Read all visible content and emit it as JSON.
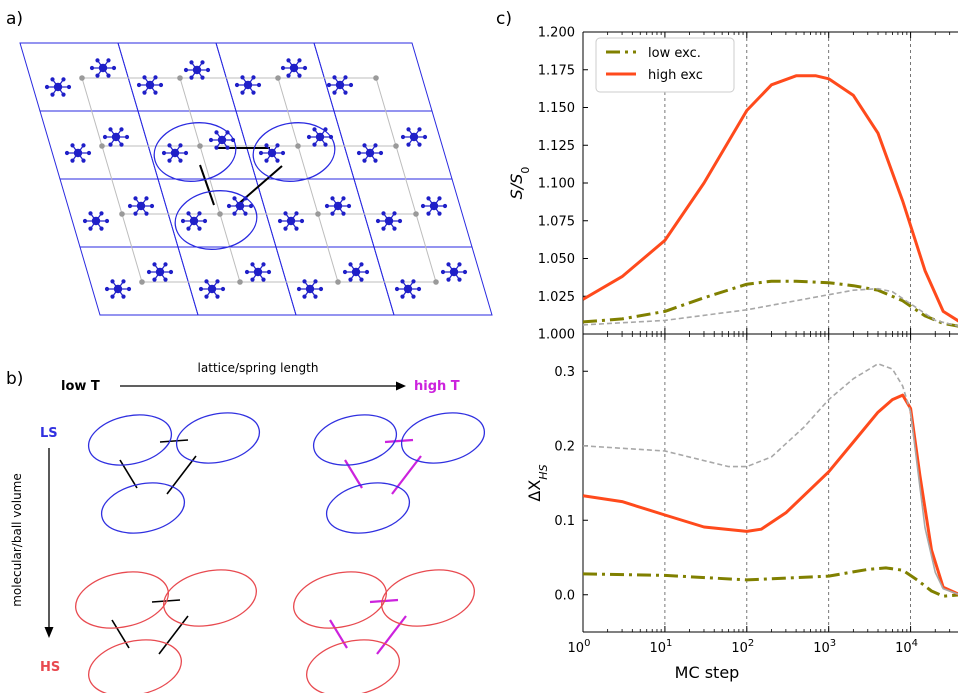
{
  "panels": {
    "a_label": "a)",
    "b_label": "b)",
    "c_label": "c)"
  },
  "diagram_b": {
    "low_t": "low T",
    "high_t": "high T",
    "ls": "LS",
    "hs": "HS",
    "arrow_horizontal_label": "lattice/spring length",
    "arrow_vertical_label": "molecular/ball volume",
    "colors": {
      "ls": "#3030e0",
      "hs": "#e84a50",
      "high_t": "#cc22dd",
      "low_t_spring": "#000000"
    }
  },
  "colors": {
    "molecule": "#1f1fc8",
    "lattice": "#2a2ae0",
    "grid": "#9a9a9a"
  },
  "chart_data": [
    {
      "type": "line",
      "panel": "c-top",
      "ylabel": "S/S0",
      "xscale": "log",
      "xlim": [
        1,
        40000
      ],
      "ylim": [
        1.0,
        1.2
      ],
      "yticks": [
        "1.000",
        "1.025",
        "1.050",
        "1.075",
        "1.100",
        "1.125",
        "1.150",
        "1.175",
        "1.200"
      ],
      "vlines_x": [
        10,
        100,
        1000,
        10000
      ],
      "legend": {
        "position": "top-left"
      },
      "series": [
        {
          "name": "low exc.",
          "color": "#808000",
          "style": "dashdot",
          "x": [
            1,
            3,
            10,
            30,
            100,
            200,
            400,
            1000,
            2000,
            4000,
            8000,
            15000,
            25000,
            40000
          ],
          "y": [
            1.008,
            1.01,
            1.015,
            1.024,
            1.033,
            1.035,
            1.035,
            1.034,
            1.032,
            1.029,
            1.022,
            1.012,
            1.007,
            1.005
          ]
        },
        {
          "name": "high exc",
          "color": "#ff4a1c",
          "style": "solid",
          "x": [
            1,
            3,
            10,
            30,
            100,
            200,
            400,
            700,
            1000,
            2000,
            4000,
            8000,
            15000,
            25000,
            40000
          ],
          "y": [
            1.023,
            1.038,
            1.062,
            1.1,
            1.148,
            1.165,
            1.171,
            1.171,
            1.169,
            1.158,
            1.133,
            1.088,
            1.042,
            1.015,
            1.008
          ]
        },
        {
          "color": "#a8a8a8",
          "style": "dashed",
          "x": [
            1,
            10,
            100,
            1000,
            2000,
            4000,
            6000,
            10000,
            20000,
            40000
          ],
          "y": [
            1.006,
            1.009,
            1.016,
            1.026,
            1.029,
            1.03,
            1.028,
            1.02,
            1.009,
            1.005
          ]
        }
      ]
    },
    {
      "type": "line",
      "panel": "c-bottom",
      "ylabel": "ΔX_HS",
      "xlabel": "MC step",
      "xscale": "log",
      "xlim": [
        1,
        40000
      ],
      "ylim": [
        -0.05,
        0.35
      ],
      "yticks": [
        "0.0",
        "0.1",
        "0.2",
        "0.3"
      ],
      "xticks": [
        "10^0",
        "10^1",
        "10^2",
        "10^3",
        "10^4"
      ],
      "vlines_x": [
        10,
        100,
        1000,
        10000
      ],
      "series": [
        {
          "name": "low exc.",
          "color": "#808000",
          "style": "dashdot",
          "x": [
            1,
            10,
            100,
            1000,
            3000,
            5000,
            8000,
            12000,
            18000,
            25000,
            40000
          ],
          "y": [
            0.028,
            0.026,
            0.02,
            0.025,
            0.034,
            0.036,
            0.033,
            0.02,
            0.005,
            -0.002,
            0.0
          ]
        },
        {
          "name": "high exc",
          "color": "#ff4a1c",
          "style": "solid",
          "x": [
            1,
            3,
            10,
            30,
            100,
            150,
            300,
            1000,
            2000,
            4000,
            6000,
            8000,
            10000,
            13000,
            18000,
            25000,
            40000
          ],
          "y": [
            0.133,
            0.125,
            0.107,
            0.091,
            0.085,
            0.088,
            0.11,
            0.165,
            0.205,
            0.245,
            0.262,
            0.268,
            0.25,
            0.16,
            0.06,
            0.01,
            0.0
          ]
        },
        {
          "color": "#a8a8a8",
          "style": "dashed",
          "x": [
            1,
            10,
            30,
            60,
            100,
            200,
            500,
            1000,
            2000,
            4000,
            6000,
            8000,
            10000
          ],
          "y": [
            0.2,
            0.193,
            0.18,
            0.172,
            0.172,
            0.185,
            0.225,
            0.262,
            0.29,
            0.31,
            0.303,
            0.28,
            0.245
          ]
        },
        {
          "color": "#a8a8a8",
          "style": "solid",
          "x": [
            10000,
            12000,
            15000,
            20000,
            25000,
            40000
          ],
          "y": [
            0.245,
            0.175,
            0.09,
            0.03,
            0.008,
            0.0
          ]
        }
      ]
    }
  ]
}
